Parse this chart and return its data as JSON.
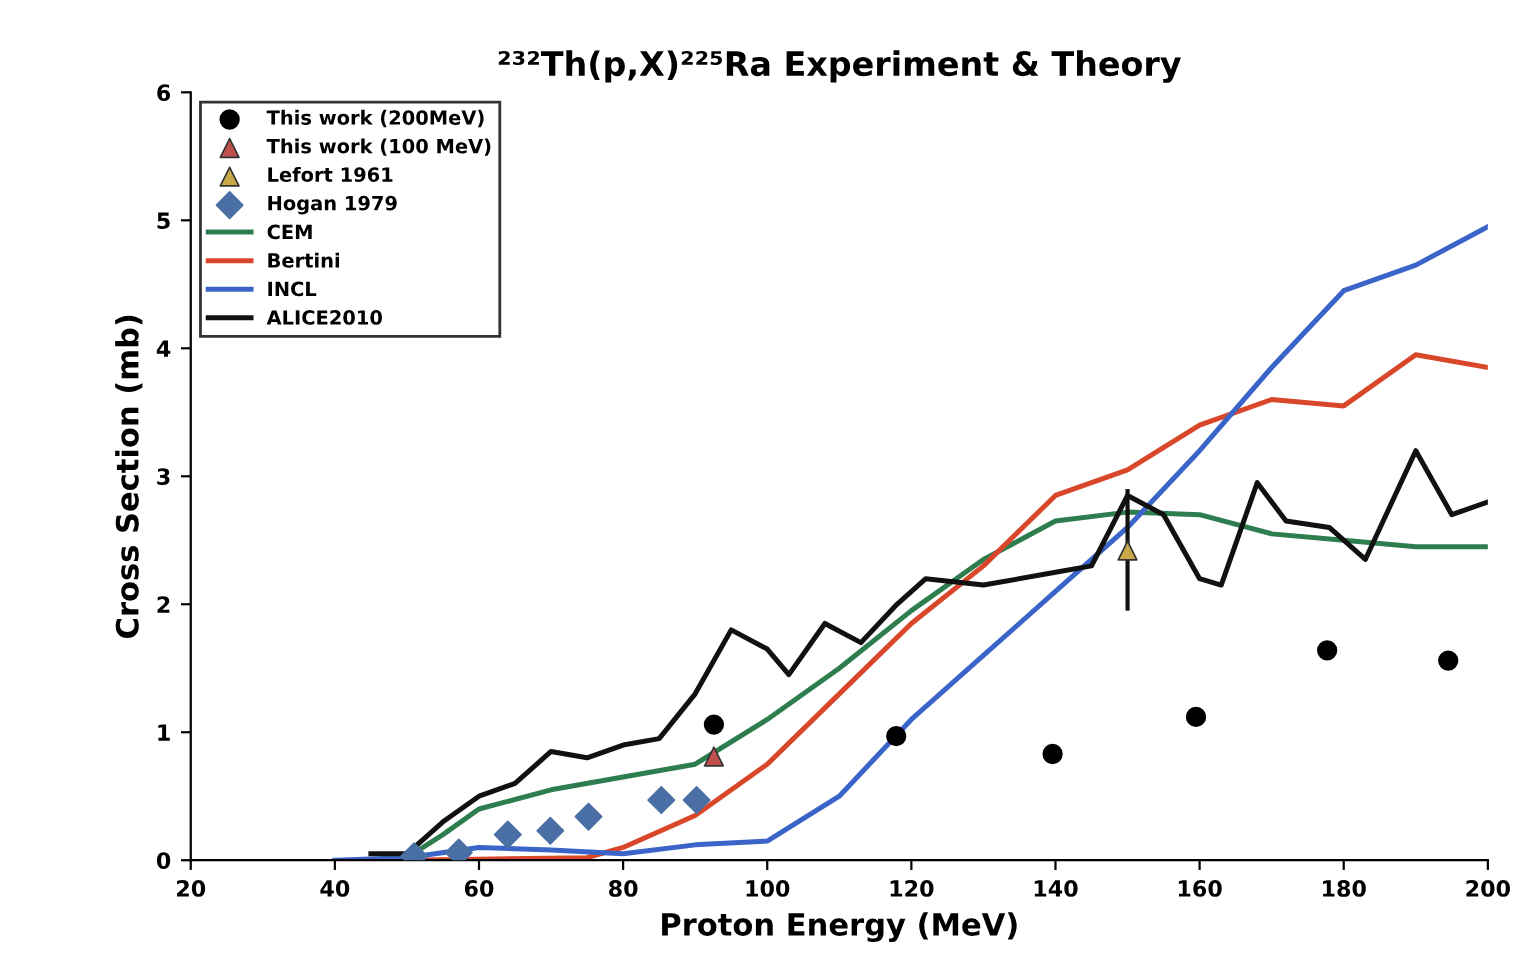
{
  "chart_data": {
    "type": "line",
    "title": "²³²Th(p,X)²²⁵Ra Experiment & Theory",
    "xlabel": "Proton Energy (MeV)",
    "ylabel": "Cross Section (mb)",
    "xlim": [
      20,
      200
    ],
    "xticks": [
      20,
      40,
      60,
      80,
      100,
      120,
      140,
      160,
      180,
      200
    ],
    "ylim": [
      0,
      6
    ],
    "yticks": [
      0,
      1,
      2,
      3,
      4,
      5,
      6
    ],
    "grid": false,
    "legend": "top left",
    "series": [
      {
        "name": "This work (200MeV)",
        "type": "scatter",
        "marker": "circle",
        "color": "#000000",
        "x": [
          92.6,
          117.9,
          139.6,
          159.5,
          177.7,
          194.5
        ],
        "values": [
          1.06,
          0.97,
          0.83,
          1.12,
          1.64,
          1.56
        ]
      },
      {
        "name": "This work (100 MeV)",
        "type": "scatter",
        "marker": "triangle",
        "color": "#c0504d",
        "x": [
          92.6
        ],
        "values": [
          0.81
        ]
      },
      {
        "name": "Lefort 1961",
        "type": "scatter",
        "marker": "triangle",
        "color": "#c9a84a",
        "x": [
          150
        ],
        "values": [
          2.42
        ],
        "errors": [
          [
            1.95,
            2.9
          ]
        ]
      },
      {
        "name": "Hogan 1979",
        "type": "scatter",
        "marker": "diamond",
        "color": "#4a6fa5",
        "x": [
          51.0,
          57.2,
          64.0,
          69.9,
          75.2,
          85.3,
          90.2
        ],
        "values": [
          0.03,
          0.06,
          0.2,
          0.23,
          0.34,
          0.47,
          0.47
        ]
      },
      {
        "name": "CEM",
        "marker": "none",
        "color": "#2e7d4f",
        "x": [
          50,
          55,
          60,
          70,
          80,
          90,
          100,
          110,
          120,
          130,
          140,
          150,
          160,
          170,
          180,
          190,
          200
        ],
        "values": [
          0.02,
          0.2,
          0.4,
          0.55,
          0.65,
          0.75,
          1.1,
          1.5,
          1.95,
          2.35,
          2.65,
          2.72,
          2.7,
          2.55,
          2.5,
          2.45,
          2.45
        ]
      },
      {
        "name": "Bertini",
        "marker": "none",
        "color": "#d9472b",
        "x": [
          50,
          75,
          80,
          90,
          100,
          110,
          120,
          130,
          140,
          150,
          160,
          170,
          180,
          190,
          200
        ],
        "values": [
          0,
          0.02,
          0.1,
          0.35,
          0.75,
          1.3,
          1.85,
          2.3,
          2.85,
          3.05,
          3.4,
          3.6,
          3.55,
          3.95,
          3.85
        ]
      },
      {
        "name": "INCL",
        "marker": "none",
        "color": "#3a64c8",
        "x": [
          40,
          50,
          60,
          70,
          80,
          90,
          100,
          110,
          120,
          130,
          140,
          150,
          160,
          170,
          180,
          190,
          200
        ],
        "values": [
          0,
          0.02,
          0.1,
          0.08,
          0.05,
          0.12,
          0.15,
          0.5,
          1.1,
          1.6,
          2.1,
          2.6,
          3.2,
          3.85,
          4.45,
          4.65,
          4.95
        ]
      },
      {
        "name": "ALICE2010",
        "marker": "none",
        "color": "#111111",
        "x": [
          45,
          50,
          55,
          60,
          65,
          70,
          75,
          80,
          85,
          90,
          95,
          100,
          103,
          108,
          113,
          118,
          122,
          130,
          140,
          145,
          150,
          155,
          160,
          163,
          168,
          172,
          178,
          183,
          190,
          195,
          200
        ],
        "values": [
          0.05,
          0.05,
          0.3,
          0.5,
          0.6,
          0.85,
          0.8,
          0.9,
          0.95,
          1.3,
          1.8,
          1.65,
          1.45,
          1.85,
          1.7,
          2.0,
          2.2,
          2.15,
          2.25,
          2.3,
          2.85,
          2.7,
          2.2,
          2.15,
          2.95,
          2.65,
          2.6,
          2.35,
          3.2,
          2.7,
          2.8
        ]
      }
    ]
  }
}
